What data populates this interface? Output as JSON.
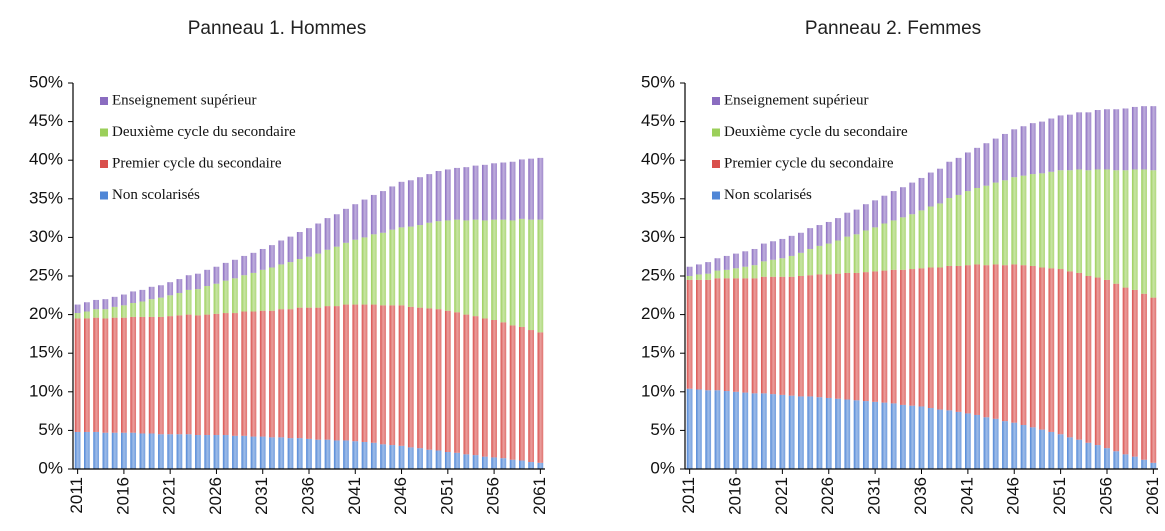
{
  "chart_data": [
    {
      "type": "bar",
      "stacked": true,
      "title": "Panneau 1. Hommes",
      "x": [
        2011,
        2012,
        2013,
        2014,
        2015,
        2016,
        2017,
        2018,
        2019,
        2020,
        2021,
        2022,
        2023,
        2024,
        2025,
        2026,
        2027,
        2028,
        2029,
        2030,
        2031,
        2032,
        2033,
        2034,
        2035,
        2036,
        2037,
        2038,
        2039,
        2040,
        2041,
        2042,
        2043,
        2044,
        2045,
        2046,
        2047,
        2048,
        2049,
        2050,
        2051,
        2052,
        2053,
        2054,
        2055,
        2056,
        2057,
        2058,
        2059,
        2060,
        2061
      ],
      "xlim": [
        2010.5,
        2061.5
      ],
      "xticks": [
        2011,
        2016,
        2021,
        2026,
        2031,
        2036,
        2041,
        2046,
        2051,
        2056,
        2061
      ],
      "ylim": [
        0,
        50
      ],
      "yticks": [
        {
          "value": 0,
          "label": "0%"
        },
        {
          "value": 5,
          "label": "5%"
        },
        {
          "value": 10,
          "label": "10%"
        },
        {
          "value": 15,
          "label": "15%"
        },
        {
          "value": 20,
          "label": "20%"
        },
        {
          "value": 25,
          "label": "25%"
        },
        {
          "value": 30,
          "label": "30%"
        },
        {
          "value": 35,
          "label": "35%"
        },
        {
          "value": 40,
          "label": "40%"
        },
        {
          "value": 45,
          "label": "45%"
        },
        {
          "value": 50,
          "label": "50%"
        }
      ],
      "legend": "upper-left",
      "series": [
        {
          "name": "Non scolarisés",
          "color": "#4f86d6",
          "values": [
            4.8,
            4.8,
            4.8,
            4.7,
            4.7,
            4.7,
            4.7,
            4.6,
            4.6,
            4.5,
            4.5,
            4.5,
            4.5,
            4.4,
            4.4,
            4.4,
            4.4,
            4.3,
            4.3,
            4.2,
            4.2,
            4.1,
            4.1,
            4.0,
            4.0,
            3.9,
            3.8,
            3.8,
            3.7,
            3.7,
            3.6,
            3.5,
            3.4,
            3.2,
            3.1,
            3.0,
            2.8,
            2.7,
            2.5,
            2.4,
            2.2,
            2.1,
            1.9,
            1.8,
            1.6,
            1.5,
            1.4,
            1.2,
            1.1,
            0.9,
            0.8
          ]
        },
        {
          "name": "Premier cycle du secondaire",
          "color": "#d94f4c",
          "values": [
            14.7,
            14.7,
            14.8,
            14.8,
            14.9,
            14.9,
            15.0,
            15.1,
            15.1,
            15.2,
            15.3,
            15.4,
            15.5,
            15.5,
            15.6,
            15.7,
            15.8,
            15.9,
            16.1,
            16.2,
            16.3,
            16.4,
            16.6,
            16.7,
            16.9,
            17.0,
            17.1,
            17.3,
            17.4,
            17.6,
            17.7,
            17.8,
            17.9,
            18.0,
            18.1,
            18.2,
            18.2,
            18.2,
            18.3,
            18.3,
            18.3,
            18.2,
            18.1,
            18.0,
            17.9,
            17.8,
            17.6,
            17.4,
            17.3,
            17.1,
            16.9
          ]
        },
        {
          "name": "Deuxième cycle du secondaire",
          "color": "#9bcf5a",
          "values": [
            0.7,
            0.9,
            1.1,
            1.2,
            1.4,
            1.6,
            1.8,
            2.0,
            2.3,
            2.5,
            2.7,
            2.9,
            3.2,
            3.4,
            3.7,
            3.9,
            4.2,
            4.5,
            4.7,
            5.0,
            5.3,
            5.6,
            5.8,
            6.1,
            6.3,
            6.6,
            7.0,
            7.3,
            7.7,
            8.0,
            8.4,
            8.7,
            9.1,
            9.4,
            9.8,
            10.1,
            10.4,
            10.7,
            11.1,
            11.4,
            11.7,
            12.0,
            12.2,
            12.5,
            12.7,
            13.0,
            13.3,
            13.6,
            14.0,
            14.3,
            14.6
          ]
        },
        {
          "name": "Enseignement supérieur",
          "color": "#8a6cc0",
          "values": [
            1.1,
            1.2,
            1.2,
            1.3,
            1.3,
            1.4,
            1.5,
            1.5,
            1.6,
            1.6,
            1.7,
            1.8,
            1.9,
            2.0,
            2.1,
            2.2,
            2.3,
            2.4,
            2.5,
            2.6,
            2.7,
            2.9,
            3.1,
            3.3,
            3.5,
            3.7,
            3.9,
            4.1,
            4.2,
            4.4,
            4.6,
            4.9,
            5.1,
            5.4,
            5.6,
            5.9,
            6.0,
            6.2,
            6.3,
            6.5,
            6.6,
            6.7,
            6.9,
            7.0,
            7.2,
            7.3,
            7.4,
            7.6,
            7.7,
            7.9,
            8.0
          ]
        }
      ]
    },
    {
      "type": "bar",
      "stacked": true,
      "title": "Panneau 2. Femmes",
      "x": [
        2011,
        2012,
        2013,
        2014,
        2015,
        2016,
        2017,
        2018,
        2019,
        2020,
        2021,
        2022,
        2023,
        2024,
        2025,
        2026,
        2027,
        2028,
        2029,
        2030,
        2031,
        2032,
        2033,
        2034,
        2035,
        2036,
        2037,
        2038,
        2039,
        2040,
        2041,
        2042,
        2043,
        2044,
        2045,
        2046,
        2047,
        2048,
        2049,
        2050,
        2051,
        2052,
        2053,
        2054,
        2055,
        2056,
        2057,
        2058,
        2059,
        2060,
        2061
      ],
      "xlim": [
        2010.5,
        2061.5
      ],
      "xticks": [
        2011,
        2016,
        2021,
        2026,
        2031,
        2036,
        2041,
        2046,
        2051,
        2056,
        2061
      ],
      "ylim": [
        0,
        50
      ],
      "yticks": [
        {
          "value": 0,
          "label": "0%"
        },
        {
          "value": 5,
          "label": "5%"
        },
        {
          "value": 10,
          "label": "10%"
        },
        {
          "value": 15,
          "label": "15%"
        },
        {
          "value": 20,
          "label": "20%"
        },
        {
          "value": 25,
          "label": "25%"
        },
        {
          "value": 30,
          "label": "30%"
        },
        {
          "value": 35,
          "label": "35%"
        },
        {
          "value": 40,
          "label": "40%"
        },
        {
          "value": 45,
          "label": "45%"
        },
        {
          "value": 50,
          "label": "50%"
        }
      ],
      "legend": "upper-left",
      "series": [
        {
          "name": "Non scolarisés",
          "color": "#4f86d6",
          "values": [
            10.4,
            10.3,
            10.2,
            10.2,
            10.1,
            10.0,
            9.9,
            9.8,
            9.8,
            9.7,
            9.6,
            9.5,
            9.4,
            9.4,
            9.3,
            9.2,
            9.1,
            9.0,
            8.9,
            8.8,
            8.7,
            8.6,
            8.5,
            8.3,
            8.2,
            8.1,
            7.9,
            7.7,
            7.6,
            7.4,
            7.2,
            7.0,
            6.7,
            6.5,
            6.2,
            6.0,
            5.7,
            5.4,
            5.1,
            4.8,
            4.5,
            4.1,
            3.8,
            3.4,
            3.1,
            2.7,
            2.3,
            1.9,
            1.6,
            1.2,
            0.8
          ]
        },
        {
          "name": "Premier cycle du secondaire",
          "color": "#d94f4c",
          "values": [
            14.1,
            14.2,
            14.3,
            14.5,
            14.6,
            14.7,
            14.8,
            14.9,
            15.1,
            15.2,
            15.3,
            15.4,
            15.6,
            15.7,
            15.9,
            16.0,
            16.2,
            16.4,
            16.5,
            16.7,
            16.9,
            17.1,
            17.3,
            17.5,
            17.7,
            17.9,
            18.2,
            18.4,
            18.7,
            18.9,
            19.2,
            19.5,
            19.7,
            20.0,
            20.2,
            20.5,
            20.7,
            20.9,
            21.0,
            21.2,
            21.4,
            21.5,
            21.6,
            21.6,
            21.7,
            21.8,
            21.7,
            21.6,
            21.6,
            21.5,
            21.4
          ]
        },
        {
          "name": "Deuxième cycle du secondaire",
          "color": "#9bcf5a",
          "values": [
            0.5,
            0.7,
            0.8,
            1.0,
            1.1,
            1.3,
            1.5,
            1.7,
            2.0,
            2.2,
            2.4,
            2.7,
            3.0,
            3.4,
            3.7,
            4.0,
            4.3,
            4.7,
            5.0,
            5.4,
            5.7,
            6.1,
            6.4,
            6.8,
            7.1,
            7.5,
            7.9,
            8.3,
            8.8,
            9.2,
            9.6,
            9.9,
            10.3,
            10.6,
            11.0,
            11.3,
            11.6,
            11.9,
            12.2,
            12.5,
            12.8,
            13.1,
            13.4,
            13.7,
            14.0,
            14.3,
            14.7,
            15.2,
            15.6,
            16.1,
            16.5
          ]
        },
        {
          "name": "Enseignement supérieur",
          "color": "#8a6cc0",
          "values": [
            1.2,
            1.3,
            1.5,
            1.6,
            1.8,
            1.9,
            2.0,
            2.1,
            2.3,
            2.4,
            2.5,
            2.6,
            2.6,
            2.7,
            2.7,
            2.8,
            2.9,
            3.1,
            3.2,
            3.4,
            3.5,
            3.6,
            3.8,
            3.9,
            4.1,
            4.2,
            4.4,
            4.5,
            4.7,
            4.8,
            5.0,
            5.2,
            5.5,
            5.7,
            6.0,
            6.2,
            6.4,
            6.6,
            6.7,
            6.9,
            7.1,
            7.2,
            7.4,
            7.5,
            7.7,
            7.8,
            7.9,
            8.0,
            8.1,
            8.2,
            8.3
          ]
        }
      ]
    }
  ]
}
